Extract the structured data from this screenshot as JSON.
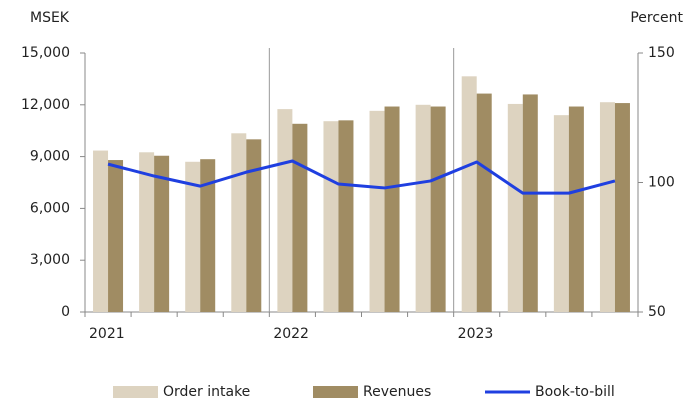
{
  "chart_data": {
    "type": "bar",
    "y_label": "MSEK",
    "y2_label": "Percent",
    "categories": [
      "2021",
      null,
      null,
      null,
      "2022",
      null,
      null,
      null,
      "2023",
      null,
      null,
      null
    ],
    "series": [
      {
        "name": "Order intake",
        "color": "#ddd3c0",
        "values": [
          9350,
          9250,
          8700,
          10350,
          11750,
          11050,
          11650,
          12000,
          13650,
          12050,
          11400,
          12150
        ]
      },
      {
        "name": "Revenues",
        "color": "#a08c63",
        "values": [
          8800,
          9050,
          8850,
          10000,
          10900,
          11100,
          11900,
          11900,
          12650,
          12600,
          11900,
          12100
        ]
      },
      {
        "name": "Book-to-bill",
        "type": "line",
        "axis": "y2",
        "color": "#1f3fe0",
        "values": [
          107.1,
          102.5,
          98.6,
          104,
          108.3,
          99.4,
          97.9,
          100.6,
          107.9,
          95.9,
          95.9,
          100.6
        ]
      }
    ],
    "ylim": [
      0,
      15000
    ],
    "yticks": [
      0,
      {
        "value": 3000,
        "label": "3,000"
      },
      {
        "value": 6000,
        "label": "6,000"
      },
      {
        "value": 9000,
        "label": "9,000"
      },
      {
        "value": 12000,
        "label": "12,000"
      },
      {
        "value": 15000,
        "label": "15,000"
      }
    ],
    "y2lim": [
      50,
      150
    ],
    "y2ticks": [
      50,
      100,
      150
    ],
    "legend": "bottom"
  }
}
